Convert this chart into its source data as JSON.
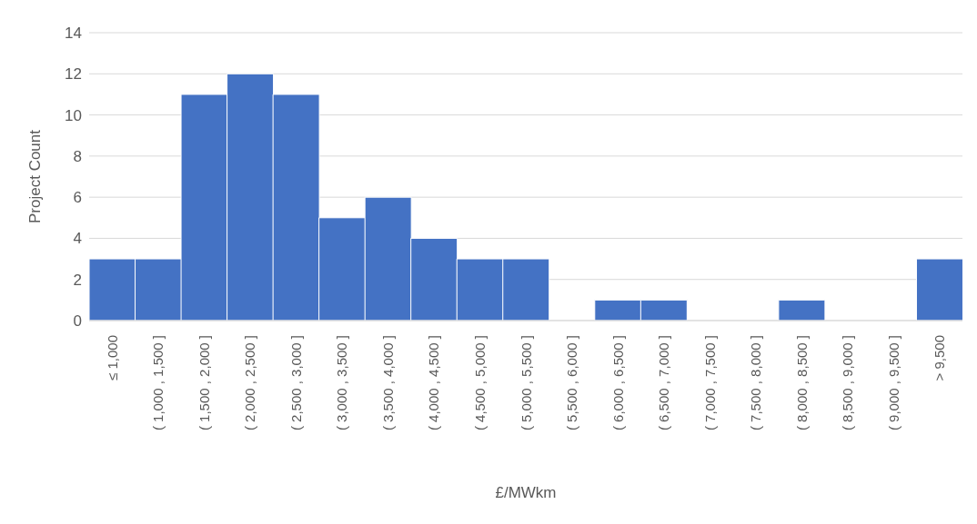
{
  "chart_data": {
    "type": "bar",
    "xlabel": "£/MWkm",
    "ylabel": "Project Count",
    "categories": [
      "≤ 1,000",
      "( 1,000 , 1,500 ]",
      "( 1,500 , 2,000 ]",
      "( 2,000 , 2,500 ]",
      "( 2,500 , 3,000 ]",
      "( 3,000 , 3,500 ]",
      "( 3,500 , 4,000 ]",
      "( 4,000 , 4,500 ]",
      "( 4,500 , 5,000 ]",
      "( 5,000 , 5,500 ]",
      "( 5,500 , 6,000 ]",
      "( 6,000 , 6,500 ]",
      "( 6,500 , 7,000 ]",
      "( 7,000 , 7,500 ]",
      "( 7,500 , 8,000 ]",
      "( 8,000 , 8,500 ]",
      "( 8,500 , 9,000 ]",
      "( 9,000 , 9,500 ]",
      "> 9,500"
    ],
    "values": [
      3,
      3,
      11,
      12,
      11,
      5,
      6,
      4,
      3,
      3,
      0,
      1,
      1,
      0,
      0,
      1,
      0,
      0,
      3
    ],
    "color": "#4472c4",
    "ylim": [
      0,
      14
    ],
    "yticks": [
      0,
      2,
      4,
      6,
      8,
      10,
      12,
      14
    ],
    "grid": "y",
    "legend": false
  }
}
